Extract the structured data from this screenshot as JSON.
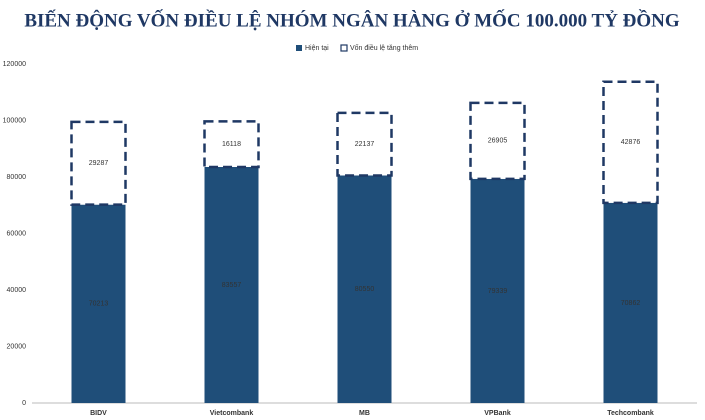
{
  "chart_data": {
    "type": "bar",
    "stacked": true,
    "title": "BIẾN ĐỘNG VỐN ĐIỀU LỆ NHÓM NGÂN HÀNG Ở MỐC 100.000 TỶ ĐỒNG",
    "categories": [
      "BIDV",
      "Vietcombank",
      "MB",
      "VPBank",
      "Techcombank"
    ],
    "series": [
      {
        "name": "Hiện tại",
        "color": "#1f4e79",
        "values": [
          70213,
          83557,
          80550,
          79339,
          70862
        ]
      },
      {
        "name": "Vốn điều lệ tăng thêm",
        "color": "#1f3864",
        "values": [
          29287,
          16118,
          22137,
          26905,
          42876
        ]
      }
    ],
    "ylim": [
      0,
      120000
    ],
    "yticks": [
      0,
      20000,
      40000,
      60000,
      80000,
      100000,
      120000
    ],
    "grid": false,
    "legend": "top"
  }
}
